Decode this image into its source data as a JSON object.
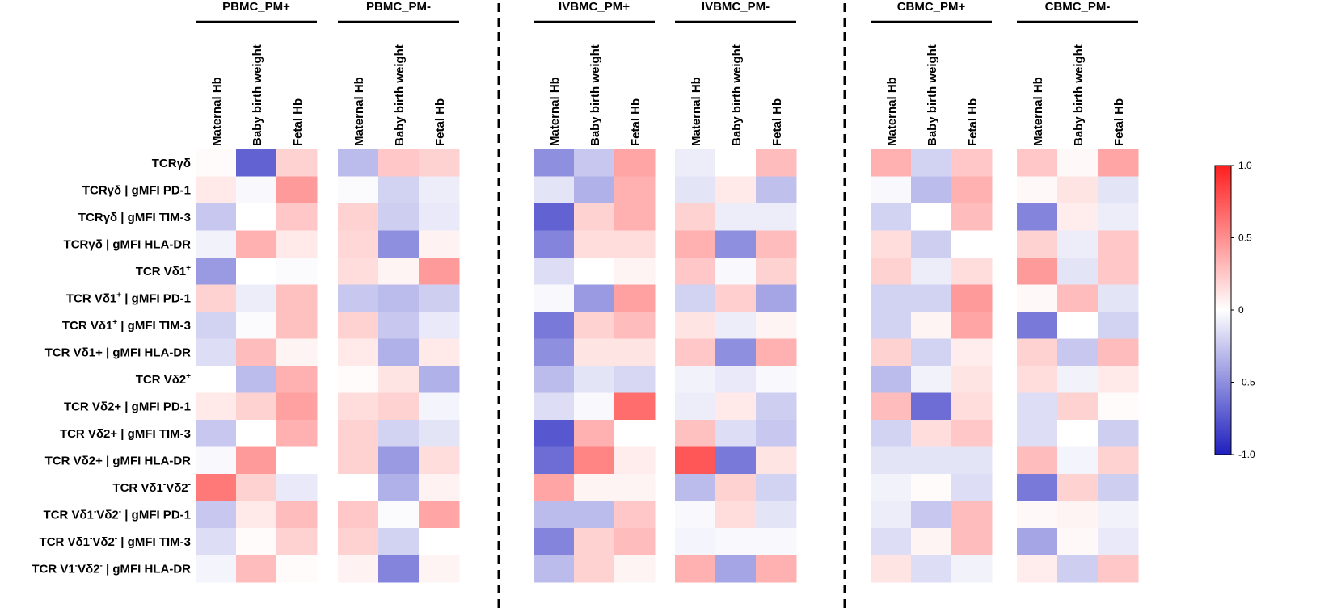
{
  "chart_data": {
    "type": "heatmap",
    "title": "",
    "columns": [
      "Maternal Hb",
      "Baby birth weight",
      "Fetal Hb"
    ],
    "rows": [
      {
        "label": "TCRγδ"
      },
      {
        "label": "TCRγδ | gMFI PD-1"
      },
      {
        "label": "TCRγδ | gMFI TIM-3"
      },
      {
        "label": "TCRγδ | gMFI HLA-DR"
      },
      {
        "label": "TCR Vδ1",
        "sup": "+"
      },
      {
        "label": "TCR Vδ1",
        "sup": "+",
        "tail": " | gMFI PD-1"
      },
      {
        "label": "TCR Vδ1",
        "sup": "+",
        "tail": " | gMFI TIM-3"
      },
      {
        "label": "TCR Vδ1+ | gMFI HLA-DR"
      },
      {
        "label": "TCR Vδ2",
        "sup": "+"
      },
      {
        "label": "TCR Vδ2+ | gMFI PD-1"
      },
      {
        "label": "TCR Vδ2+ | gMFI TIM-3"
      },
      {
        "label": "TCR Vδ2+ | gMFI HLA-DR"
      },
      {
        "label": "TCR Vδ1",
        "sup": "-",
        "mid": "Vδ2",
        "sup2": "-"
      },
      {
        "label": "TCR Vδ1",
        "sup": "-",
        "mid": "Vδ2",
        "sup2": "-",
        "tail": " | gMFI PD-1"
      },
      {
        "label": "TCR Vδ1",
        "sup": "-",
        "mid": "Vδ2",
        "sup2": "-",
        "tail": " | gMFI TIM-3"
      },
      {
        "label": "TCR V1",
        "sup": "-",
        "mid": "Vδ2",
        "sup2": "-",
        "tail": " | gMFI HLA-DR"
      }
    ],
    "groups": [
      {
        "name": "PBMC_PM+",
        "values": [
          [
            0.02,
            -0.7,
            0.2
          ],
          [
            0.1,
            -0.03,
            0.45
          ],
          [
            -0.25,
            0.0,
            0.25
          ],
          [
            -0.06,
            0.35,
            0.1
          ],
          [
            -0.45,
            0.0,
            -0.02
          ],
          [
            0.2,
            -0.08,
            0.28
          ],
          [
            -0.2,
            -0.02,
            0.28
          ],
          [
            -0.15,
            0.3,
            0.05
          ],
          [
            0.0,
            -0.3,
            0.35
          ],
          [
            0.1,
            0.2,
            0.42
          ],
          [
            -0.25,
            0.0,
            0.35
          ],
          [
            -0.03,
            0.45,
            0.0
          ],
          [
            0.6,
            0.2,
            -0.1
          ],
          [
            -0.25,
            0.1,
            0.3
          ],
          [
            -0.15,
            0.02,
            0.2
          ],
          [
            -0.05,
            0.3,
            0.02
          ]
        ]
      },
      {
        "name": "PBMC_PM-",
        "values": [
          [
            -0.3,
            0.25,
            0.2
          ],
          [
            -0.02,
            -0.2,
            -0.08
          ],
          [
            0.2,
            -0.22,
            -0.1
          ],
          [
            0.18,
            -0.5,
            0.06
          ],
          [
            0.15,
            0.05,
            0.45
          ],
          [
            -0.25,
            -0.3,
            -0.22
          ],
          [
            0.2,
            -0.25,
            -0.1
          ],
          [
            0.1,
            -0.35,
            0.1
          ],
          [
            0.02,
            0.12,
            -0.35
          ],
          [
            0.15,
            0.2,
            -0.05
          ],
          [
            0.2,
            -0.2,
            -0.12
          ],
          [
            0.2,
            -0.45,
            0.15
          ],
          [
            0.0,
            -0.35,
            0.06
          ],
          [
            0.25,
            -0.02,
            0.4
          ],
          [
            0.2,
            -0.2,
            0.0
          ],
          [
            0.06,
            -0.55,
            0.05
          ]
        ]
      },
      {
        "name": "IVBMC_PM+",
        "values": [
          [
            -0.5,
            -0.25,
            0.4
          ],
          [
            -0.12,
            -0.35,
            0.35
          ],
          [
            -0.7,
            0.2,
            0.35
          ],
          [
            -0.55,
            0.15,
            0.15
          ],
          [
            -0.15,
            0.0,
            0.05
          ],
          [
            -0.03,
            -0.45,
            0.42
          ],
          [
            -0.6,
            0.2,
            0.3
          ],
          [
            -0.5,
            0.12,
            0.12
          ],
          [
            -0.3,
            -0.12,
            -0.18
          ],
          [
            -0.15,
            -0.03,
            0.65
          ],
          [
            -0.75,
            0.35,
            0.0
          ],
          [
            -0.65,
            0.55,
            0.08
          ],
          [
            0.4,
            0.05,
            0.05
          ],
          [
            -0.3,
            -0.3,
            0.25
          ],
          [
            -0.55,
            0.2,
            0.3
          ],
          [
            -0.3,
            0.2,
            0.05
          ]
        ]
      },
      {
        "name": "IVBMC_PM-",
        "values": [
          [
            -0.08,
            0.0,
            0.3
          ],
          [
            -0.12,
            0.1,
            -0.28
          ],
          [
            0.2,
            -0.08,
            -0.08
          ],
          [
            0.35,
            -0.5,
            0.3
          ],
          [
            0.25,
            -0.03,
            0.2
          ],
          [
            -0.2,
            0.22,
            -0.4
          ],
          [
            0.12,
            -0.08,
            0.05
          ],
          [
            0.25,
            -0.5,
            0.35
          ],
          [
            -0.06,
            -0.1,
            -0.03
          ],
          [
            -0.08,
            0.1,
            -0.22
          ],
          [
            0.28,
            -0.15,
            -0.25
          ],
          [
            0.75,
            -0.6,
            0.12
          ],
          [
            -0.3,
            0.2,
            -0.2
          ],
          [
            -0.03,
            0.15,
            -0.12
          ],
          [
            -0.05,
            -0.03,
            -0.03
          ],
          [
            0.35,
            -0.4,
            0.35
          ]
        ]
      },
      {
        "name": "CBMC_PM+",
        "values": [
          [
            0.35,
            -0.2,
            0.25
          ],
          [
            -0.03,
            -0.3,
            0.35
          ],
          [
            -0.2,
            0.0,
            0.3
          ],
          [
            0.15,
            -0.22,
            0.0
          ],
          [
            0.2,
            -0.08,
            0.15
          ],
          [
            -0.2,
            -0.2,
            0.45
          ],
          [
            -0.2,
            0.05,
            0.4
          ],
          [
            0.2,
            -0.2,
            0.08
          ],
          [
            -0.3,
            -0.06,
            0.12
          ],
          [
            0.3,
            -0.65,
            0.15
          ],
          [
            -0.2,
            0.15,
            0.25
          ],
          [
            -0.12,
            -0.12,
            -0.12
          ],
          [
            -0.06,
            0.02,
            -0.15
          ],
          [
            -0.08,
            -0.25,
            0.3
          ],
          [
            -0.15,
            0.05,
            0.3
          ],
          [
            0.12,
            -0.15,
            -0.06
          ]
        ]
      },
      {
        "name": "CBMC_PM-",
        "values": [
          [
            0.25,
            0.03,
            0.4
          ],
          [
            0.03,
            0.12,
            -0.12
          ],
          [
            -0.55,
            0.08,
            -0.08
          ],
          [
            0.2,
            -0.08,
            0.25
          ],
          [
            0.45,
            -0.12,
            0.25
          ],
          [
            0.03,
            0.3,
            -0.12
          ],
          [
            -0.6,
            0.0,
            -0.2
          ],
          [
            0.2,
            -0.25,
            0.3
          ],
          [
            0.15,
            -0.06,
            0.1
          ],
          [
            -0.15,
            0.2,
            0.02
          ],
          [
            -0.15,
            0.0,
            -0.22
          ],
          [
            0.3,
            -0.05,
            0.2
          ],
          [
            -0.6,
            0.2,
            -0.22
          ],
          [
            0.03,
            0.05,
            -0.06
          ],
          [
            -0.4,
            0.03,
            -0.1
          ],
          [
            0.08,
            -0.22,
            0.25
          ]
        ]
      }
    ],
    "colorbar": {
      "min": -1.0,
      "max": 1.0,
      "ticks": [
        1.0,
        0.5,
        0,
        -0.5,
        -1.0
      ],
      "tick_labels": [
        "1.0",
        "0.5",
        "0",
        "-0.5",
        "-1.0"
      ],
      "low_color": "#1f1fbf",
      "mid_color": "#ffffff",
      "high_color": "#ff1f1f"
    }
  }
}
